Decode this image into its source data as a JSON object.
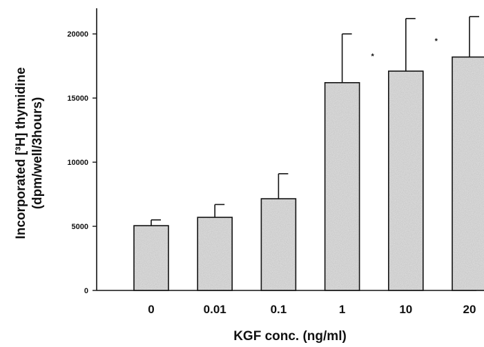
{
  "chart_data": {
    "type": "bar",
    "title": "",
    "xlabel": "KGF conc. (ng/ml)",
    "ylabel_line1": "Incorporated [³H] thymidine",
    "ylabel_line2": "(dpm/well/3hours)",
    "categories": [
      "0",
      "0.01",
      "0.1",
      "1",
      "10",
      "20"
    ],
    "values": [
      5050,
      5700,
      7150,
      16200,
      17100,
      18200
    ],
    "error_upper": [
      5500,
      6700,
      9100,
      20000,
      21200,
      21350
    ],
    "significance": [
      false,
      false,
      false,
      true,
      true,
      true
    ],
    "significance_marker": "*",
    "ylim": [
      0,
      22000
    ],
    "yticks": [
      0,
      5000,
      10000,
      15000,
      20000
    ],
    "grid": false,
    "bar_color": "#c8c8c8"
  }
}
